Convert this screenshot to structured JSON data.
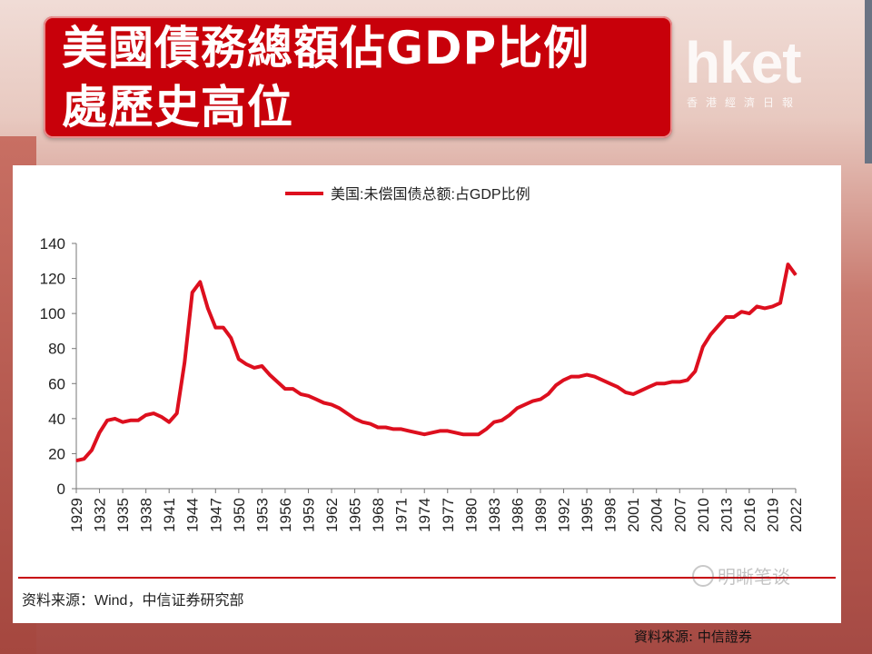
{
  "title": {
    "line1": "美國債務總額佔GDP比例",
    "line2": "處歷史高位"
  },
  "logo": {
    "brand": "hket",
    "subtitle": "香港經濟日報"
  },
  "watermark": "明晰笔谈",
  "chart_source": "资料来源：Wind，中信证券研究部",
  "page_source": "資料來源: 中信證券",
  "colors": {
    "line": "#dd0f1e",
    "title_bg": "#c8000a",
    "rule": "#c8000a"
  },
  "chart_data": {
    "type": "line",
    "title": "",
    "legend": [
      "美国:未偿国债总额:占GDP比例"
    ],
    "legend_position": "top-center",
    "grid": false,
    "ylim": [
      0,
      140
    ],
    "yticks": [
      0,
      20,
      40,
      60,
      80,
      100,
      120,
      140
    ],
    "xlim": [
      1929,
      2022
    ],
    "xticks": [
      1929,
      1932,
      1935,
      1938,
      1941,
      1944,
      1947,
      1950,
      1953,
      1956,
      1959,
      1962,
      1965,
      1968,
      1971,
      1974,
      1977,
      1980,
      1983,
      1986,
      1989,
      1992,
      1995,
      1998,
      2001,
      2004,
      2007,
      2010,
      2013,
      2016,
      2019,
      2022
    ],
    "series": [
      {
        "name": "美国:未偿国债总额:占GDP比例",
        "x": [
          1929,
          1930,
          1931,
          1932,
          1933,
          1934,
          1935,
          1936,
          1937,
          1938,
          1939,
          1940,
          1941,
          1942,
          1943,
          1944,
          1945,
          1946,
          1947,
          1948,
          1949,
          1950,
          1951,
          1952,
          1953,
          1954,
          1955,
          1956,
          1957,
          1958,
          1959,
          1960,
          1961,
          1962,
          1963,
          1964,
          1965,
          1966,
          1967,
          1968,
          1969,
          1970,
          1971,
          1972,
          1973,
          1974,
          1975,
          1976,
          1977,
          1978,
          1979,
          1980,
          1981,
          1982,
          1983,
          1984,
          1985,
          1986,
          1987,
          1988,
          1989,
          1990,
          1991,
          1992,
          1993,
          1994,
          1995,
          1996,
          1997,
          1998,
          1999,
          2000,
          2001,
          2002,
          2003,
          2004,
          2005,
          2006,
          2007,
          2008,
          2009,
          2010,
          2011,
          2012,
          2013,
          2014,
          2015,
          2016,
          2017,
          2018,
          2019,
          2020,
          2021,
          2022
        ],
        "values": [
          16,
          17,
          22,
          32,
          39,
          40,
          38,
          39,
          39,
          42,
          43,
          41,
          38,
          43,
          72,
          112,
          118,
          103,
          92,
          92,
          86,
          74,
          71,
          69,
          70,
          65,
          61,
          57,
          57,
          54,
          53,
          51,
          49,
          48,
          46,
          43,
          40,
          38,
          37,
          35,
          35,
          34,
          34,
          33,
          32,
          31,
          32,
          33,
          33,
          32,
          31,
          31,
          31,
          34,
          38,
          39,
          42,
          46,
          48,
          50,
          51,
          54,
          59,
          62,
          64,
          64,
          65,
          64,
          62,
          60,
          58,
          55,
          54,
          56,
          58,
          60,
          60,
          61,
          61,
          62,
          67,
          81,
          88,
          93,
          98,
          98,
          101,
          100,
          104,
          103,
          104,
          106,
          128,
          122
        ]
      }
    ]
  }
}
